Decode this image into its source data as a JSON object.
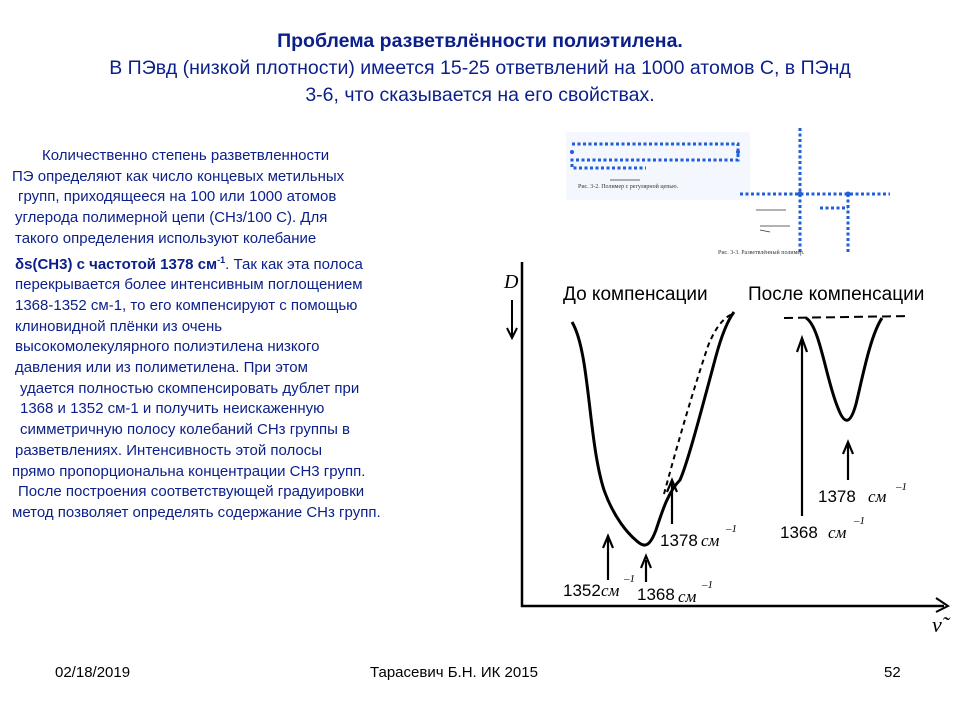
{
  "title": {
    "line1": "Проблема разветвлённости полиэтилена.",
    "line2": "В ПЭвд (низкой плотности) имеется 15-25 ответвлений на 1000 атомов С, в  ПЭнд",
    "line3": "3-6, что сказывается на его свойствах."
  },
  "body": {
    "lines": [
      "Количественно степень разветвленности",
      "ПЭ определяют как число  концевых метильных",
      "групп, приходящееся на 100 или 1000 атомов",
      "углерода полимерной цепи (СНз/100 С). Для",
      "такого определения используют колебание",
      "",
      "перекрывается более интенсивным поглощением",
      "1368-1352 см-1, то его  компенсируют с помощью",
      "клиновидной плёнки из очень",
      "высокомолекулярного полиэтилена низкого",
      "давления или из полиметилена. При этом",
      "удается полностью скомпенсировать дублет при",
      "1368 и 1352 см-1 и получить неискаженную",
      "симметричную полосу колебаний СНз группы в",
      "разветвлениях. Интенсивность этой полосы",
      "прямо пропорциональна концентрации СН3 групп.",
      "После построения соответствующей градуировки",
      "метод позволяет определять содержание СНз групп."
    ],
    "delta_symbol": "δ",
    "bold_part": "s(СН3) с частотой 1378 см",
    "superscript": "-1",
    "after_bold": ". Так как эта полоса"
  },
  "diagram": {
    "caption1": "Рис. 3-2. Полимер с регулярной цепью.",
    "caption2": "Рис. 3-3. Разветвлённый полимер.",
    "y_axis": "D",
    "x_axis": "ν̃",
    "before_label": "До компенсации",
    "after_label": "После компенсации",
    "label_1352": "1352",
    "label_1368": "1368",
    "label_1378": "1378",
    "label_1378_right": "1378",
    "label_1368_right": "1368",
    "unit": "см",
    "unit_exp": "–1"
  },
  "footer": {
    "date": "02/18/2019",
    "author": "Тарасевич Б.Н.  ИК 2015",
    "page": "52"
  },
  "colors": {
    "text": "#0b1f8a",
    "chain": "#1e5ed8",
    "chain_bg": "#c9d9f5"
  }
}
